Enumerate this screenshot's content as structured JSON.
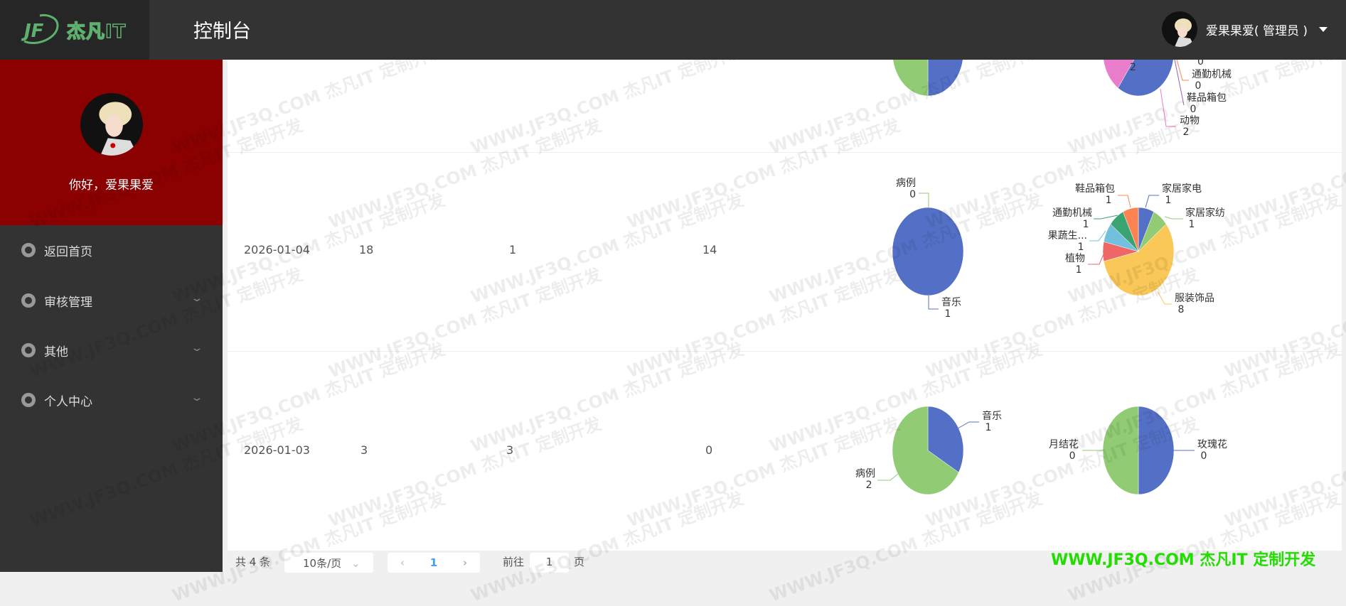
{
  "header": {
    "logo_text": "杰凡IT",
    "title": "控制台",
    "user_label": "爱果果爱( 管理员 )"
  },
  "sidebar": {
    "greeting": "你好，爱果果爱",
    "items": [
      {
        "label": "返回首页"
      },
      {
        "label": "审核管理"
      },
      {
        "label": "其他"
      },
      {
        "label": "个人中心"
      }
    ]
  },
  "colors": {
    "palette": [
      "#5470c6",
      "#91cc75",
      "#fac858",
      "#ee6666",
      "#73c0de",
      "#3ba272",
      "#fc8452",
      "#9a60b4",
      "#ea7ccc"
    ],
    "sidebar_profile": "#8b0000",
    "header": "#333333"
  },
  "rows": [
    {
      "date": "",
      "c1": "",
      "c2": "",
      "c3": ""
    },
    {
      "date": "2026-01-04",
      "c1": "18",
      "c2": "1",
      "c3": "14"
    },
    {
      "date": "2026-01-03",
      "c1": "3",
      "c2": "3",
      "c3": "0"
    }
  ],
  "chart_data": [
    {
      "type": "pie",
      "row": 1,
      "slices": [
        {
          "name": "",
          "value": 1,
          "color": "#5470c6"
        },
        {
          "name": "",
          "value": 1,
          "color": "#91cc75"
        }
      ]
    },
    {
      "type": "pie",
      "row": 1,
      "slices": [
        {
          "name": "",
          "value": 2,
          "label": "2",
          "color": "#5470c6"
        },
        {
          "name": "",
          "value": 0,
          "label": "0",
          "color": "#fc8452"
        },
        {
          "name": "通勤机械",
          "value": 0,
          "color": "#3ba272"
        },
        {
          "name": "鞋品箱包",
          "value": 0,
          "color": "#9a60b4"
        },
        {
          "name": "动物",
          "value": 2,
          "color": "#ea7ccc"
        }
      ]
    },
    {
      "type": "pie",
      "row": 2,
      "slices": [
        {
          "name": "音乐",
          "value": 1,
          "color": "#5470c6"
        },
        {
          "name": "病例",
          "value": 0,
          "color": "#91cc75"
        }
      ]
    },
    {
      "type": "pie",
      "row": 2,
      "slices": [
        {
          "name": "家居家电",
          "value": 1,
          "color": "#5470c6"
        },
        {
          "name": "家居家纺",
          "value": 1,
          "color": "#91cc75"
        },
        {
          "name": "服装饰品",
          "value": 8,
          "color": "#fac858"
        },
        {
          "name": "植物",
          "value": 1,
          "color": "#ee6666"
        },
        {
          "name": "果蔬生...",
          "value": 1,
          "color": "#73c0de"
        },
        {
          "name": "通勤机械",
          "value": 1,
          "color": "#3ba272"
        },
        {
          "name": "鞋品箱包",
          "value": 1,
          "color": "#fc8452"
        }
      ]
    },
    {
      "type": "pie",
      "row": 3,
      "slices": [
        {
          "name": "音乐",
          "value": 1,
          "color": "#5470c6"
        },
        {
          "name": "病例",
          "value": 2,
          "color": "#91cc75"
        }
      ]
    },
    {
      "type": "pie",
      "row": 3,
      "slices": [
        {
          "name": "玫瑰花",
          "value": 0,
          "color": "#5470c6"
        },
        {
          "name": "月结花",
          "value": 0,
          "color": "#91cc75"
        }
      ]
    }
  ],
  "pagination": {
    "total": "共 4 条",
    "page_size": "10条/页",
    "current": "1",
    "goto_label": "前往",
    "goto_value": "1",
    "page_suffix": "页",
    "prev": "‹",
    "next": "›"
  },
  "watermark": "WWW.JF3Q.COM 杰凡IT  定制开发"
}
